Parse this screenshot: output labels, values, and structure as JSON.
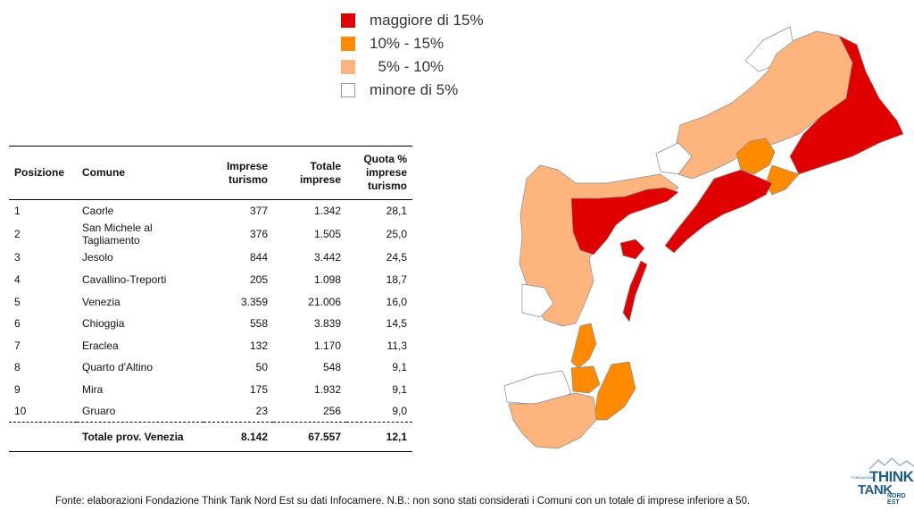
{
  "legend": [
    {
      "label": "maggiore di 15%",
      "color": "#e00000"
    },
    {
      "label": "10% - 15%",
      "color": "#ff8a00"
    },
    {
      "label": "  5% - 10%",
      "color": "#fdb57d"
    },
    {
      "label": "minore di 5%",
      "color": "#ffffff"
    }
  ],
  "table": {
    "headers": {
      "posizione": "Posizione",
      "comune": "Comune",
      "imprese": [
        "Imprese",
        "turismo"
      ],
      "totale": [
        "Totale",
        "imprese"
      ],
      "quota": [
        "Quota %",
        "imprese",
        "turismo"
      ]
    },
    "rows": [
      {
        "pos": "1",
        "comune": "Caorle",
        "imprese": "377",
        "totale": "1.342",
        "quota": "28,1"
      },
      {
        "pos": "2",
        "comune": "San Michele al Tagliamento",
        "imprese": "376",
        "totale": "1.505",
        "quota": "25,0"
      },
      {
        "pos": "3",
        "comune": "Jesolo",
        "imprese": "844",
        "totale": "3.442",
        "quota": "24,5"
      },
      {
        "pos": "4",
        "comune": "Cavallino-Treporti",
        "imprese": "205",
        "totale": "1.098",
        "quota": "18,7"
      },
      {
        "pos": "5",
        "comune": "Venezia",
        "imprese": "3.359",
        "totale": "21.006",
        "quota": "16,0"
      },
      {
        "pos": "6",
        "comune": "Chioggia",
        "imprese": "558",
        "totale": "3.839",
        "quota": "14,5"
      },
      {
        "pos": "7",
        "comune": "Eraclea",
        "imprese": "132",
        "totale": "1.170",
        "quota": "11,3"
      },
      {
        "pos": "8",
        "comune": "Quarto d'Altino",
        "imprese": "50",
        "totale": "548",
        "quota": "9,1"
      },
      {
        "pos": "9",
        "comune": "Mira",
        "imprese": "175",
        "totale": "1.932",
        "quota": "9,1"
      },
      {
        "pos": "10",
        "comune": "Gruaro",
        "imprese": "23",
        "totale": "256",
        "quota": "9,0"
      }
    ],
    "total": {
      "label": "Totale prov. Venezia",
      "imprese": "8.142",
      "totale": "67.557",
      "quota": "12,1"
    }
  },
  "footer": "Fonte: elaborazioni Fondazione Think Tank Nord Est su dati Infocamere. N.B.: non sono stati considerati i Comuni con un totale di imprese inferiore a 50.",
  "logo": {
    "small": "FONDAZIONE",
    "think": "THINK",
    "tank": "TANK",
    "nord": "NORD EST"
  },
  "colors": {
    "high": "#e00000",
    "mid": "#ff8a00",
    "low": "#fdb57d",
    "none": "#ffffff",
    "border": "#8a8a8a",
    "logo": "#1e5b8c"
  }
}
